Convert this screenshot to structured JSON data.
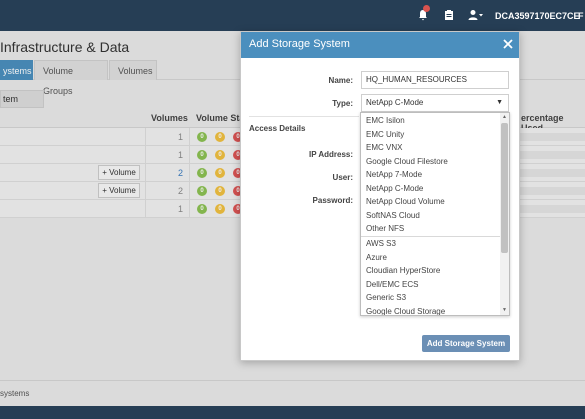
{
  "header": {
    "account_id": "DCA3597170EC7CE",
    "account_extra": "F",
    "icons": [
      "notifications-icon",
      "clipboard-icon",
      "user-icon"
    ]
  },
  "page": {
    "title": "Infrastructure & Data",
    "tabs": [
      "ystems",
      "Volume Groups",
      "Volumes"
    ],
    "systems_button": "tem"
  },
  "table": {
    "headers": {
      "volumes": "Volumes",
      "volume_status": "Volume Stat",
      "percentage_used": "ercentage Used"
    },
    "rows": [
      {
        "volumes": "1",
        "link": false,
        "add_button": ""
      },
      {
        "volumes": "1",
        "link": false,
        "add_button": ""
      },
      {
        "volumes": "2",
        "link": true,
        "add_button": "+ Volume"
      },
      {
        "volumes": "2",
        "link": false,
        "add_button": "+ Volume"
      },
      {
        "volumes": "1",
        "link": false,
        "add_button": ""
      }
    ],
    "status_glyph": "0"
  },
  "footer": {
    "text": "systems"
  },
  "modal": {
    "title": "Add Storage System",
    "name_label": "Name:",
    "name_value": "HQ_HUMAN_RESOURCES",
    "type_label": "Type:",
    "type_value": "NetApp C-Mode",
    "section_title": "Access Details",
    "ip_label": "IP Address:",
    "user_label": "User:",
    "password_label": "Password:",
    "submit_label": "Add Storage System",
    "dropdown_options": [
      "EMC Isilon",
      "EMC Unity",
      "EMC VNX",
      "Google Cloud Filestore",
      "NetApp 7-Mode",
      "NetApp C-Mode",
      "NetApp Cloud Volume",
      "SoftNAS Cloud",
      "Other NFS",
      "AWS S3",
      "Azure",
      "Cloudian HyperStore",
      "Dell/EMC ECS",
      "Generic S3",
      "Google Cloud Storage"
    ]
  },
  "colors": {
    "header_bg": "#263e55",
    "accent": "#4b8fbe",
    "status_green": "#8cc152",
    "status_yellow": "#f0c040",
    "status_red": "#e05555"
  }
}
